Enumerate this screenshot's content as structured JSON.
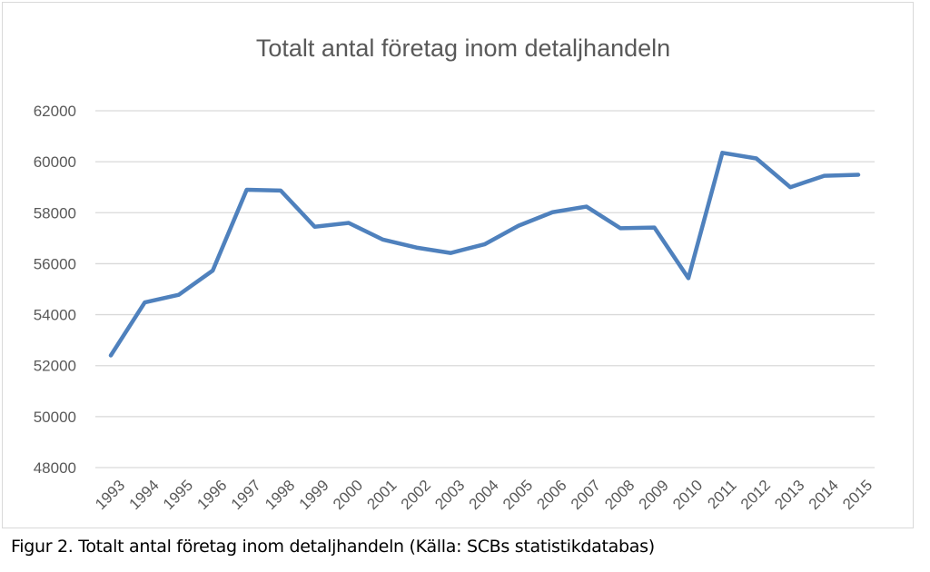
{
  "chart_data": {
    "type": "line",
    "title": "Totalt antal företag inom detaljhandeln",
    "xlabel": "",
    "ylabel": "",
    "x": [
      "1993",
      "1994",
      "1995",
      "1996",
      "1997",
      "1998",
      "1999",
      "2000",
      "2001",
      "2002",
      "2003",
      "2004",
      "2005",
      "2006",
      "2007",
      "2008",
      "2009",
      "2010",
      "2011",
      "2012",
      "2013",
      "2014",
      "2015"
    ],
    "series": [
      {
        "values": [
          52400,
          54480,
          54780,
          55730,
          58900,
          58870,
          57450,
          57600,
          56950,
          56630,
          56420,
          56760,
          57490,
          58020,
          58240,
          57390,
          57420,
          55430,
          60350,
          60130,
          59000,
          59450,
          59490
        ]
      }
    ],
    "ylim": [
      48000,
      62000
    ],
    "yticks": [
      "48000",
      "50000",
      "52000",
      "54000",
      "56000",
      "58000",
      "60000",
      "62000"
    ],
    "grid": true,
    "legend": "none",
    "colors": {
      "line": "#4f81bd",
      "grid": "#d9d9d9",
      "text": "#595959"
    }
  },
  "caption": "Figur 2. Totalt antal företag inom detaljhandeln (Källa: SCBs statistikdatabas)"
}
